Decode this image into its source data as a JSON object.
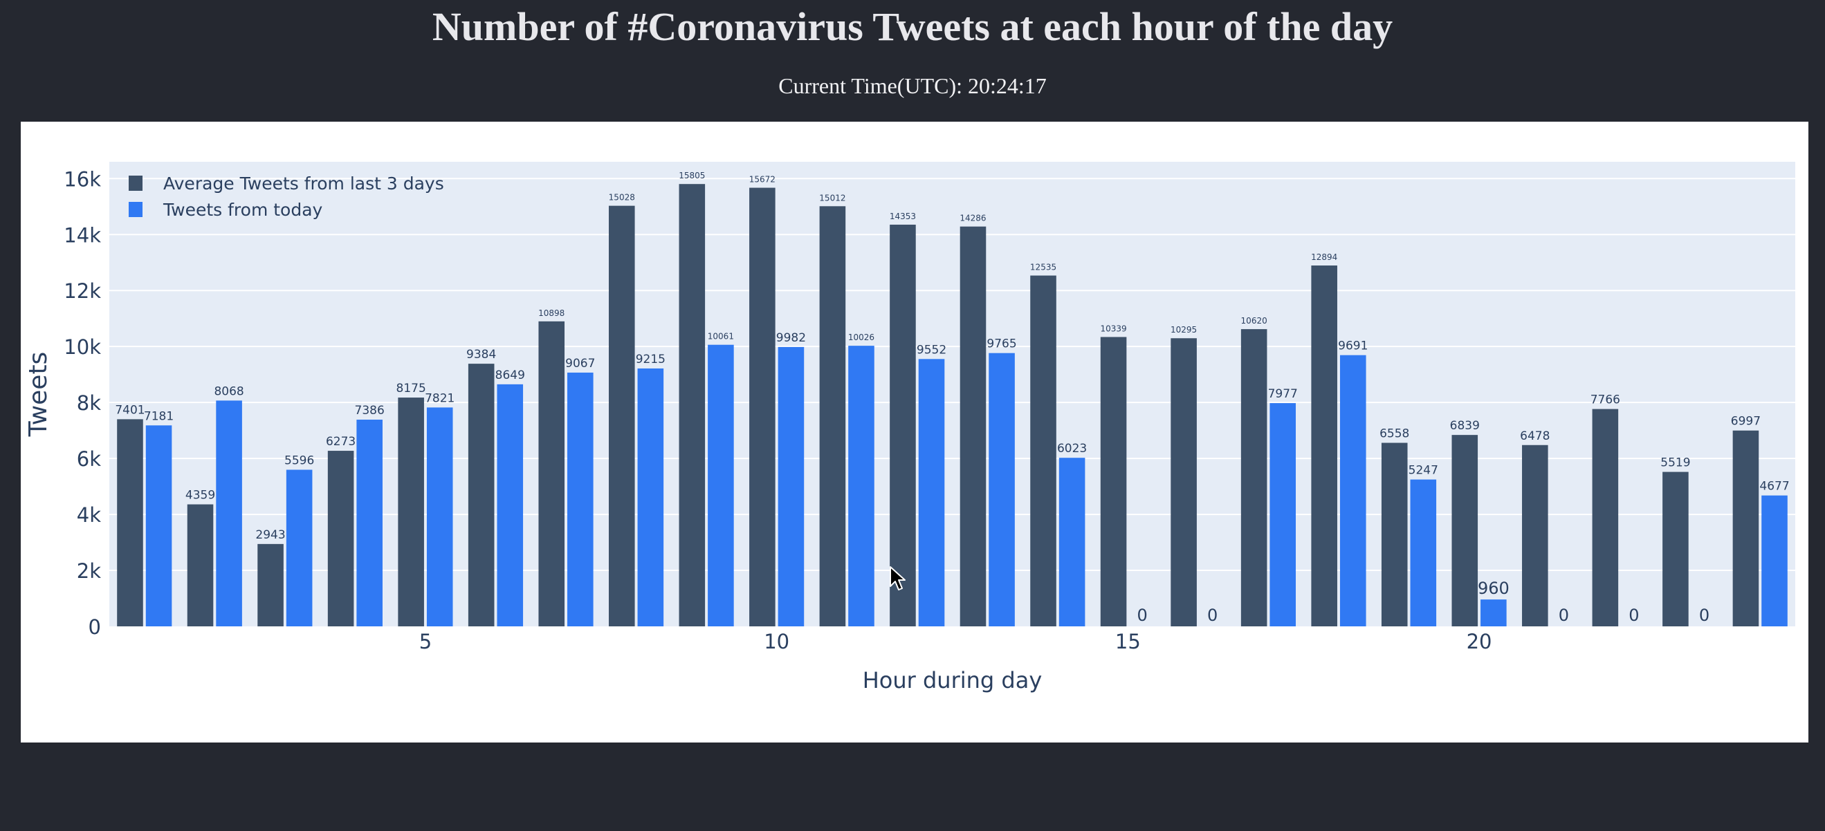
{
  "header": {
    "title": "Number of #Coronavirus Tweets at each hour of the day",
    "current_time_label": "Current Time(UTC): ",
    "current_time_value": "20:24:17"
  },
  "colors": {
    "page_background": "#252830",
    "plot_background": "#e5ecf6",
    "gridline": "#ffffff",
    "text": "#2a3f5f",
    "series_average": "#3d5169",
    "series_today": "#3079f3"
  },
  "chart_data": {
    "type": "bar",
    "title": "",
    "xlabel": "Hour during day",
    "ylabel": "Tweets",
    "x": [
      1,
      2,
      3,
      4,
      5,
      6,
      7,
      8,
      9,
      10,
      11,
      12,
      13,
      14,
      15,
      16,
      17,
      18,
      19,
      20,
      21,
      22,
      23,
      24
    ],
    "xticks": [
      5,
      10,
      15,
      20
    ],
    "xlim": [
      0.5,
      24.5
    ],
    "ylim": [
      0,
      16600
    ],
    "yticks": [
      0,
      2000,
      4000,
      6000,
      8000,
      10000,
      12000,
      14000,
      16000
    ],
    "ytick_labels": [
      "0",
      "2k",
      "4k",
      "6k",
      "8k",
      "10k",
      "12k",
      "14k",
      "16k"
    ],
    "grid": true,
    "legend_position": "top-left",
    "series": [
      {
        "name": "Average Tweets from last 3 days",
        "color": "#3d5169",
        "values": [
          7401,
          4359,
          2943,
          6273,
          8175,
          9384,
          10898,
          15028,
          15805,
          15672,
          15012,
          14353,
          14286,
          12535,
          10339,
          10295,
          10620,
          12894,
          6558,
          6839,
          6478,
          7766,
          5519,
          6997
        ]
      },
      {
        "name": "Tweets from today",
        "color": "#3079f3",
        "values": [
          7181,
          8068,
          5596,
          7386,
          7821,
          8649,
          9067,
          9215,
          10061,
          9982,
          10026,
          9552,
          9765,
          6023,
          0,
          0,
          7977,
          9691,
          5247,
          960,
          0,
          0,
          0,
          4677
        ]
      }
    ]
  }
}
